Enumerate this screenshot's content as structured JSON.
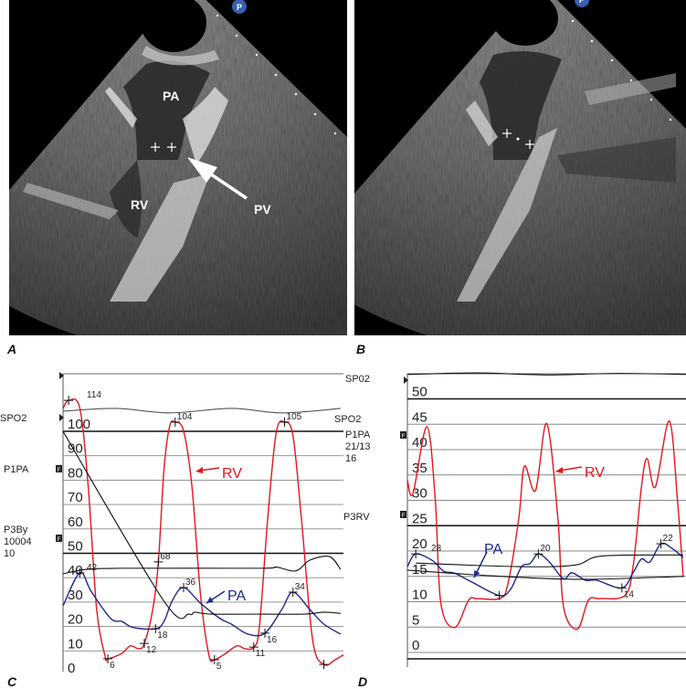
{
  "panels": {
    "A": {
      "label": "A",
      "structures": {
        "pa": "PA",
        "rv": "RV",
        "pv": "PV"
      },
      "badge": "P"
    },
    "B": {
      "label": "B",
      "badge": "P"
    },
    "C": {
      "label": "C"
    },
    "D": {
      "label": "D"
    }
  },
  "side_labels": {
    "C_left": {
      "spo2": "SPO2",
      "p1pa": "P1PA",
      "p3by": "P3By",
      "p3by_val1": "10004",
      "p3by_val2": "10"
    },
    "D_left": {
      "sp02": "SP02",
      "spo2": "SPO2",
      "p1pa": "P1PA",
      "p1pa_val1": "21/13",
      "p1pa_val2": "16",
      "p3rv": "P3RV"
    },
    "f_marker": "F"
  },
  "colors": {
    "rv": "#e0161e",
    "pa": "#1f2a8c",
    "black": "#111111",
    "spo2": "#555555",
    "grid": "#888888"
  },
  "chart_data": [
    {
      "id": "C",
      "type": "line",
      "title": "",
      "xlabel": "",
      "ylabel": "",
      "ylim": [
        0,
        115
      ],
      "yticks": [
        0,
        10,
        20,
        30,
        40,
        50,
        60,
        70,
        80,
        90,
        100
      ],
      "grid": true,
      "series": [
        {
          "name": "RV",
          "color": "#e0161e",
          "points": [
            [
              0,
              106
            ],
            [
              2,
              109.3
            ],
            [
              6,
              106
            ],
            [
              9,
              73.7
            ],
            [
              12,
              23.6
            ],
            [
              15,
              4.4
            ],
            [
              16,
              3.4
            ],
            [
              21,
              5.6
            ],
            [
              24,
              8.7
            ],
            [
              27,
              7.5
            ],
            [
              29,
              9.7
            ],
            [
              32,
              23.6
            ],
            [
              34,
              43.1
            ],
            [
              36,
              81
            ],
            [
              38,
              98.6
            ],
            [
              40,
              100.4
            ],
            [
              43,
              96.7
            ],
            [
              46,
              73.7
            ],
            [
              49,
              30
            ],
            [
              52,
              5
            ],
            [
              54,
              3
            ],
            [
              58,
              5.6
            ],
            [
              62,
              8.7
            ],
            [
              65,
              7.5
            ],
            [
              68,
              8.2
            ],
            [
              70,
              16.2
            ],
            [
              73,
              61
            ],
            [
              76,
              96
            ],
            [
              79,
              100.4
            ],
            [
              82,
              94.8
            ],
            [
              85,
              61
            ],
            [
              89,
              11.2
            ],
            [
              93,
              1.1
            ],
            [
              97,
              3
            ],
            [
              100,
              5
            ]
          ]
        },
        {
          "name": "PA",
          "color": "#1f2a8c",
          "points": [
            [
              0,
              25.1
            ],
            [
              6,
              38.6
            ],
            [
              10,
              31.1
            ],
            [
              17,
              19.9
            ],
            [
              21,
              18.7
            ],
            [
              25,
              16.2
            ],
            [
              33,
              15.7
            ],
            [
              36,
              18.7
            ],
            [
              39,
              27.3
            ],
            [
              43,
              32.6
            ],
            [
              49,
              26.2
            ],
            [
              56,
              19.9
            ],
            [
              60,
              17.6
            ],
            [
              66,
              13.5
            ],
            [
              72,
              13.9
            ],
            [
              78,
              23.6
            ],
            [
              82,
              30.7
            ],
            [
              88,
              23.6
            ],
            [
              93,
              17.6
            ],
            [
              99,
              13.5
            ]
          ]
        },
        {
          "color": "#111111",
          "points": [
            [
              0,
              96.6
            ],
            [
              36,
              27
            ],
            [
              45,
              21.7
            ],
            [
              47,
              22.5
            ],
            [
              53,
              21.7
            ],
            [
              72,
              21.7
            ],
            [
              86,
              21.7
            ],
            [
              93,
              22.5
            ],
            [
              99,
              22
            ]
          ]
        },
        {
          "color": "#111111",
          "points": [
            [
              0,
              38.2
            ],
            [
              8,
              40
            ],
            [
              21,
              40.5
            ],
            [
              70,
              40.5
            ],
            [
              76,
              41
            ],
            [
              83,
              39.4
            ],
            [
              88,
              43.8
            ],
            [
              95,
              45.3
            ],
            [
              99,
              40
            ]
          ]
        },
        {
          "color": "#555555",
          "points": [
            [
              0,
              104.9
            ],
            [
              19,
              106
            ],
            [
              38,
              104.2
            ],
            [
              60,
              106
            ],
            [
              78,
              104.2
            ],
            [
              99,
              106
            ]
          ]
        }
      ],
      "annotations": [
        {
          "t": 2,
          "v": 109.3,
          "text": "114"
        },
        {
          "t": 16,
          "v": 3.4,
          "text": "6"
        },
        {
          "t": 29,
          "v": 9.7,
          "text": "12"
        },
        {
          "t": 34,
          "v": 43.1,
          "text": "68"
        },
        {
          "t": 40,
          "v": 100.4,
          "text": "104"
        },
        {
          "t": 54,
          "v": 3,
          "text": "5"
        },
        {
          "t": 68,
          "v": 8.2,
          "text": "11"
        },
        {
          "t": 79,
          "v": 100.4,
          "text": "105"
        },
        {
          "t": 93,
          "v": 1.1,
          "text": ""
        },
        {
          "t": 6,
          "v": 38.6,
          "text": "42"
        },
        {
          "t": 33,
          "v": 15.7,
          "text": "18"
        },
        {
          "t": 43,
          "v": 32.6,
          "text": "36"
        },
        {
          "t": 72,
          "v": 13.9,
          "text": "16"
        },
        {
          "t": 82,
          "v": 30.7,
          "text": "34"
        }
      ],
      "trace_labels": {
        "rv": "RV",
        "pa": "PA"
      }
    },
    {
      "id": "D",
      "type": "line",
      "title": "",
      "xlabel": "",
      "ylabel": "",
      "ylim": [
        0,
        53
      ],
      "yticks": [
        0,
        5,
        10,
        15,
        20,
        25,
        30,
        35,
        40,
        45,
        50
      ],
      "grid": true,
      "series": [
        {
          "name": "RV",
          "color": "#e0161e",
          "points": [
            [
              0,
              32.4
            ],
            [
              2,
              29.7
            ],
            [
              7,
              42.9
            ],
            [
              10,
              28.5
            ],
            [
              12,
              8.1
            ],
            [
              17,
              3.3
            ],
            [
              22,
              8.7
            ],
            [
              25,
              9
            ],
            [
              33,
              9
            ],
            [
              36,
              11.7
            ],
            [
              40,
              24.9
            ],
            [
              42,
              35.1
            ],
            [
              46,
              30.3
            ],
            [
              50,
              43.5
            ],
            [
              54,
              24.9
            ],
            [
              56,
              7.5
            ],
            [
              61,
              3
            ],
            [
              65,
              8.7
            ],
            [
              69,
              9
            ],
            [
              78,
              9.6
            ],
            [
              81,
              15.3
            ],
            [
              84,
              31
            ],
            [
              86,
              36.6
            ],
            [
              89,
              31
            ],
            [
              94,
              44
            ],
            [
              97,
              28
            ],
            [
              99,
              13.2
            ]
          ]
        },
        {
          "name": "PA",
          "color": "#1f2a8c",
          "points": [
            [
              0,
              15.3
            ],
            [
              3,
              17.8
            ],
            [
              9,
              16.5
            ],
            [
              13,
              14.4
            ],
            [
              17,
              14
            ],
            [
              23,
              12.3
            ],
            [
              33,
              9.6
            ],
            [
              37,
              10.8
            ],
            [
              41,
              15.3
            ],
            [
              44,
              15.9
            ],
            [
              47,
              17.8
            ],
            [
              51,
              16.2
            ],
            [
              56,
              12.9
            ],
            [
              59,
              14.1
            ],
            [
              64,
              12.6
            ],
            [
              68,
              12.6
            ],
            [
              77,
              11.1
            ],
            [
              81,
              14.1
            ],
            [
              84,
              16.8
            ],
            [
              87,
              16.2
            ],
            [
              91,
              19.8
            ],
            [
              95,
              18.9
            ],
            [
              99,
              17.1
            ]
          ]
        },
        {
          "color": "#111111",
          "points": [
            [
              0,
              14.6
            ],
            [
              30,
              13.5
            ],
            [
              60,
              12.8
            ],
            [
              90,
              13.2
            ],
            [
              99,
              13.4
            ]
          ]
        },
        {
          "color": "#111111",
          "points": [
            [
              3,
              16
            ],
            [
              40,
              15.3
            ],
            [
              60,
              15.6
            ],
            [
              70,
              17.4
            ],
            [
              99,
              17.6
            ]
          ]
        },
        {
          "color": "#111111",
          "points": [
            [
              0,
              53.2
            ],
            [
              25,
              53.5
            ],
            [
              50,
              53.1
            ],
            [
              75,
              53.4
            ],
            [
              100,
              53.2
            ]
          ]
        }
      ],
      "annotations": [
        {
          "t": 3,
          "v": 17.8,
          "text": "28"
        },
        {
          "t": 33,
          "v": 9.6,
          "text": ""
        },
        {
          "t": 47,
          "v": 17.8,
          "text": "20"
        },
        {
          "t": 77,
          "v": 11.1,
          "text": "14"
        },
        {
          "t": 91,
          "v": 19.8,
          "text": "22"
        }
      ],
      "trace_labels": {
        "rv": "RV",
        "pa": "PA"
      }
    }
  ]
}
